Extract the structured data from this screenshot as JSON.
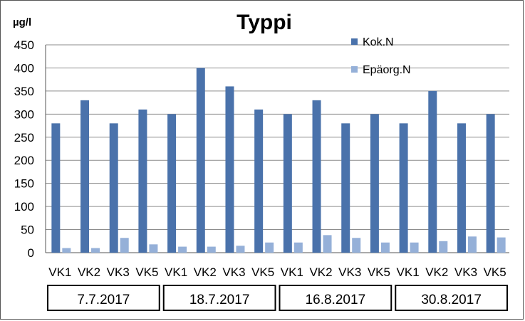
{
  "chart_data": {
    "type": "bar",
    "title": "Typpi",
    "ylabel": "µg/l",
    "xlabel": "",
    "ylim": [
      0,
      450
    ],
    "yticks": [
      0,
      50,
      100,
      150,
      200,
      250,
      300,
      350,
      400,
      450
    ],
    "grid": true,
    "legend_position": "top-right",
    "categories": [
      "VK1",
      "VK2",
      "VK3",
      "VK5",
      "VK1",
      "VK2",
      "VK3",
      "VK5",
      "VK1",
      "VK2",
      "VK3",
      "VK5",
      "VK1",
      "VK2",
      "VK3",
      "VK5"
    ],
    "groups": [
      {
        "label": "7.7.2017",
        "count": 4
      },
      {
        "label": "18.7.2017",
        "count": 4
      },
      {
        "label": "16.8.2017",
        "count": 4
      },
      {
        "label": "30.8.2017",
        "count": 4
      }
    ],
    "series": [
      {
        "name": "Kok.N",
        "color": "#4a72ab",
        "values": [
          280,
          330,
          280,
          310,
          300,
          400,
          360,
          310,
          300,
          330,
          280,
          300,
          280,
          350,
          280,
          300
        ]
      },
      {
        "name": "Epäorg.N",
        "color": "#95b0d8",
        "values": [
          10,
          10,
          32,
          18,
          13,
          13,
          15,
          22,
          22,
          38,
          32,
          22,
          22,
          25,
          35,
          33
        ]
      }
    ]
  }
}
